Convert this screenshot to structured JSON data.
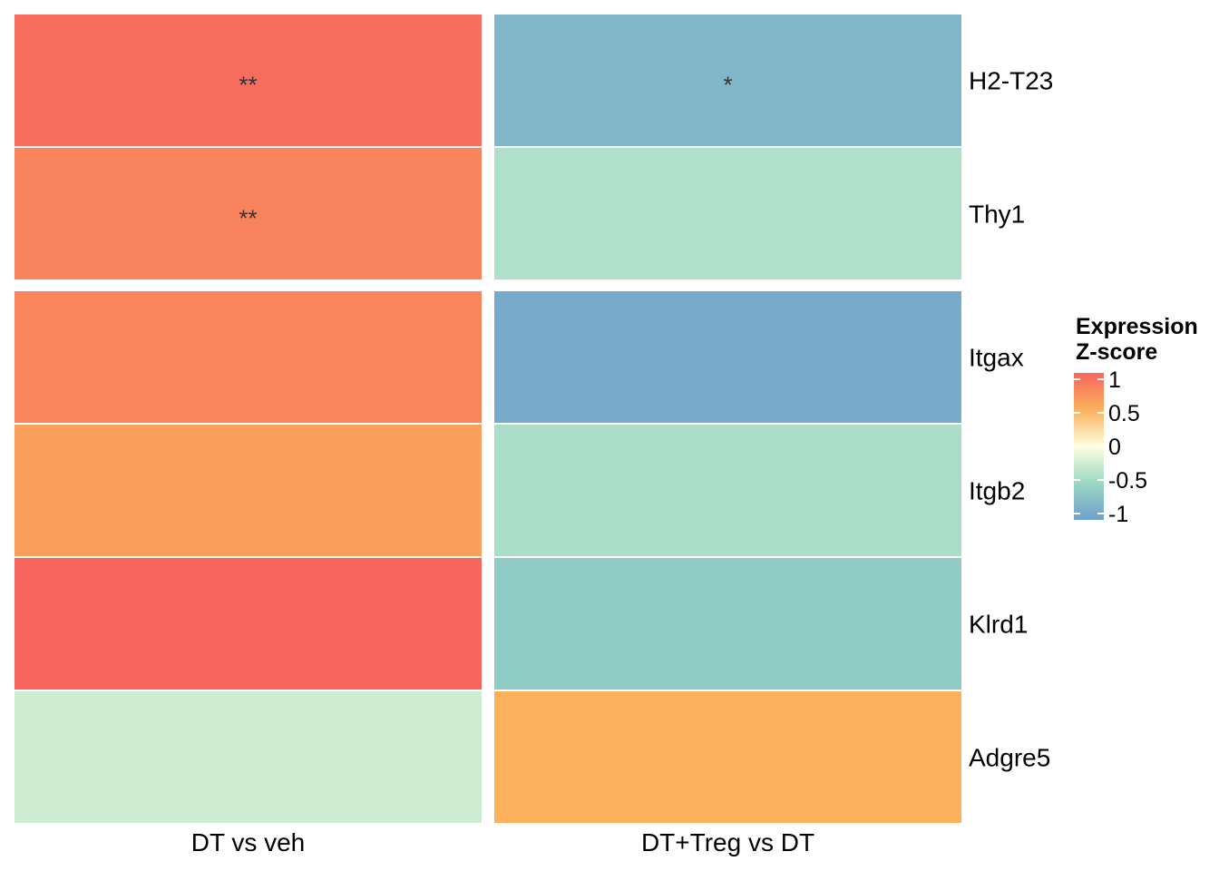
{
  "chart_data": {
    "type": "heatmap",
    "columns": [
      "DT vs veh",
      "DT+Treg vs DT"
    ],
    "rows": [
      "H2-T23",
      "Thy1",
      "Itgax",
      "Itgb2",
      "Klrd1",
      "Adgre5"
    ],
    "row_groups": [
      [
        "H2-T23",
        "Thy1"
      ],
      [
        "Itgax",
        "Itgb2",
        "Klrd1",
        "Adgre5"
      ]
    ],
    "values": [
      [
        0.95,
        -0.8
      ],
      [
        0.8,
        -0.4
      ],
      [
        0.78,
        -0.9
      ],
      [
        0.62,
        -0.42
      ],
      [
        1.0,
        -0.62
      ],
      [
        -0.25,
        0.5
      ]
    ],
    "annotations": [
      [
        "**",
        "*"
      ],
      [
        "**",
        ""
      ],
      [
        "",
        ""
      ],
      [
        "",
        ""
      ],
      [
        "",
        ""
      ],
      [
        "",
        ""
      ]
    ],
    "legend": {
      "title_line1": "Expression",
      "title_line2": "Z-score",
      "ticks": [
        1,
        0.5,
        0,
        -0.5,
        -1
      ],
      "tick_labels": [
        "1",
        "0.5",
        "0",
        "-0.5",
        "-1"
      ],
      "range": [
        -1,
        1
      ],
      "colors": [
        "#6fa0cc",
        "#9bd8c3",
        "#ffffe0",
        "#fbb15c",
        "#f7655e"
      ],
      "placement": "right"
    }
  }
}
